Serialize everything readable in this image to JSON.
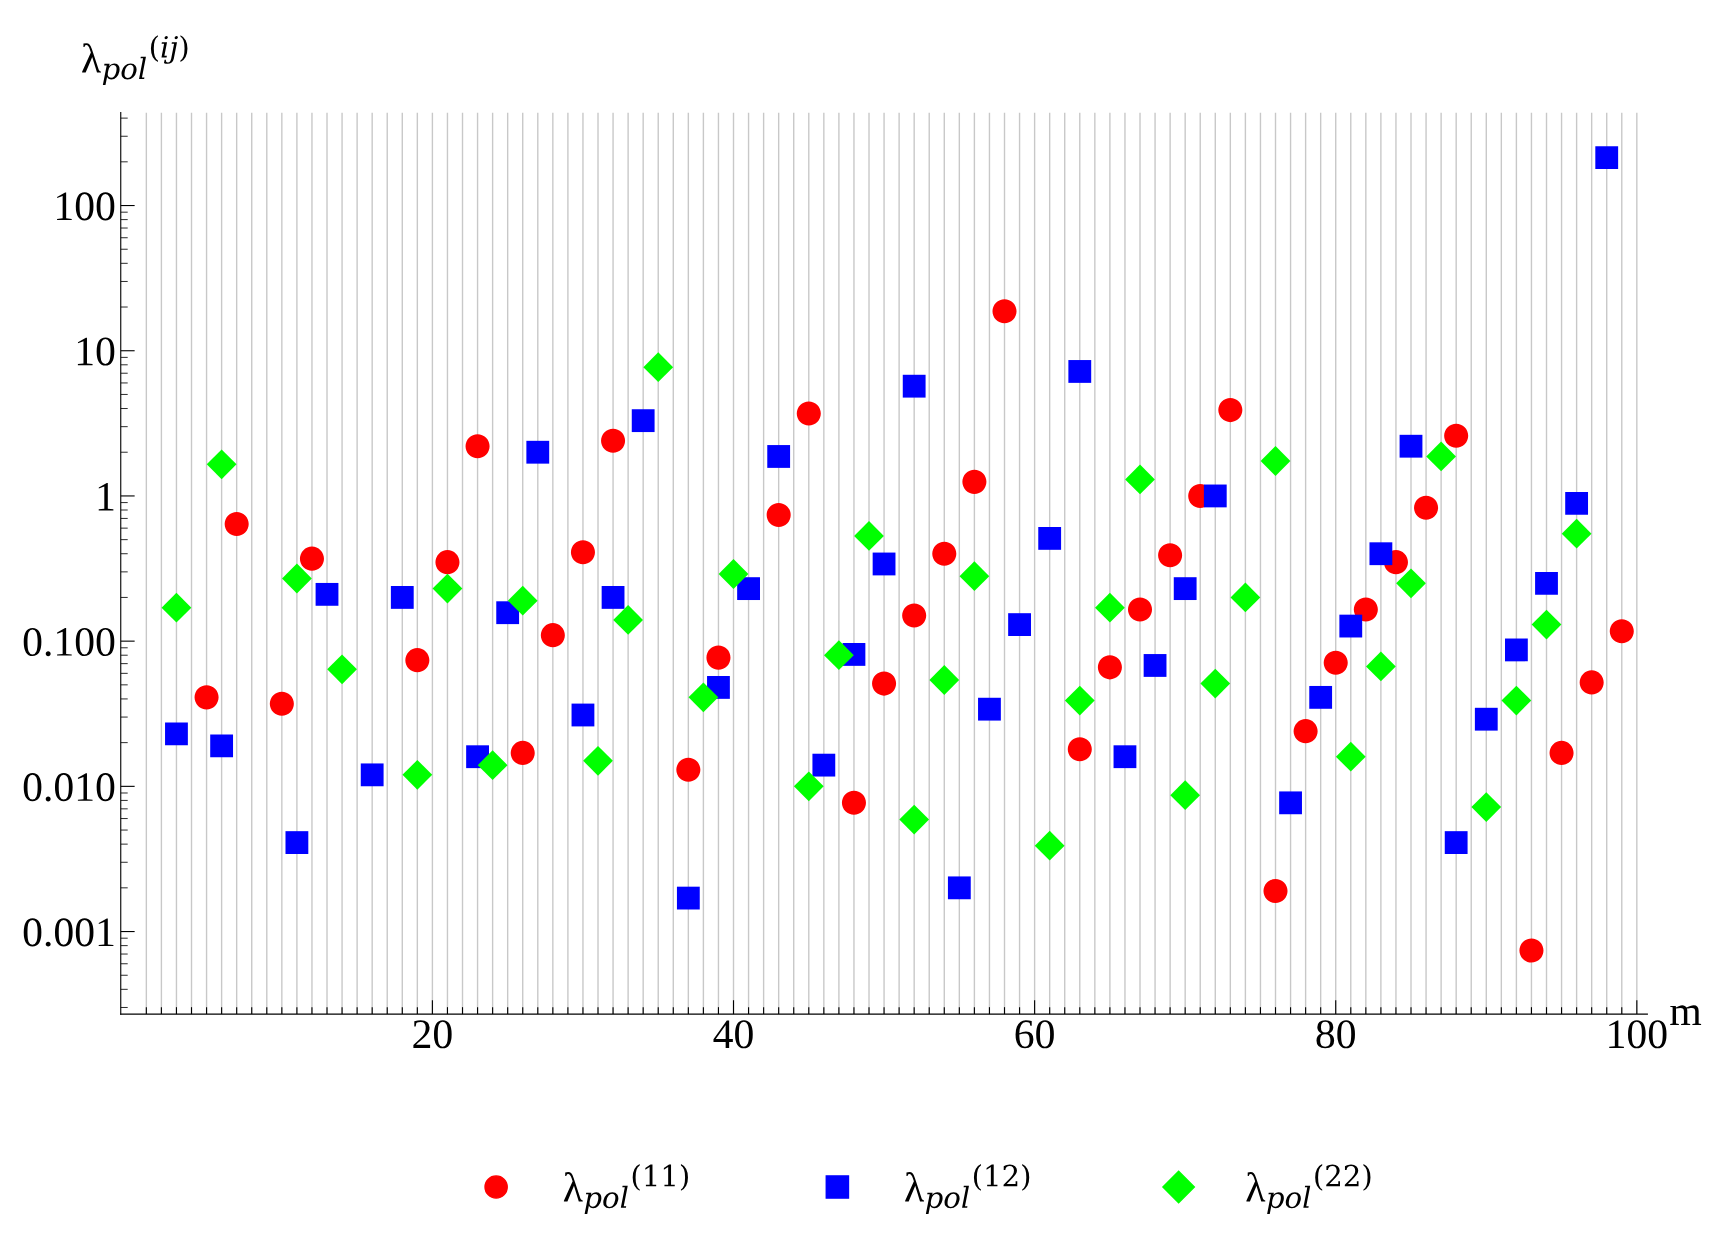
{
  "chart_data": {
    "type": "scatter",
    "xlabel": "m",
    "ylabel": "λ$_{pol}$$^{(ij)}$",
    "log": "y",
    "grid": "x",
    "legend": "bottom",
    "xlim": [
      -0.7,
      100.7
    ],
    "ylim": [
      0.00027,
      436
    ],
    "yticks": [
      {
        "value": 0.001,
        "label": "0.001"
      },
      {
        "value": 0.01,
        "label": "0.010"
      },
      {
        "value": 0.1,
        "label": "0.100"
      },
      1,
      10,
      100
    ],
    "xticks": [
      {
        "value": 1,
        "label": null
      },
      {
        "value": 2,
        "label": null
      },
      {
        "value": 3,
        "label": null
      },
      {
        "value": 4,
        "label": null
      },
      {
        "value": 5,
        "label": null
      },
      {
        "value": 6,
        "label": null
      },
      {
        "value": 7,
        "label": null
      },
      {
        "value": 8,
        "label": null
      },
      {
        "value": 9,
        "label": null
      },
      {
        "value": 10,
        "label": null
      },
      {
        "value": 11,
        "label": null
      },
      {
        "value": 12,
        "label": null
      },
      {
        "value": 13,
        "label": null
      },
      {
        "value": 14,
        "label": null
      },
      {
        "value": 15,
        "label": null
      },
      {
        "value": 16,
        "label": null
      },
      {
        "value": 17,
        "label": null
      },
      {
        "value": 18,
        "label": null
      },
      {
        "value": 19,
        "label": null
      },
      20,
      {
        "value": 21,
        "label": null
      },
      {
        "value": 22,
        "label": null
      },
      {
        "value": 23,
        "label": null
      },
      {
        "value": 24,
        "label": null
      },
      {
        "value": 25,
        "label": null
      },
      {
        "value": 26,
        "label": null
      },
      {
        "value": 27,
        "label": null
      },
      {
        "value": 28,
        "label": null
      },
      {
        "value": 29,
        "label": null
      },
      {
        "value": 30,
        "label": null
      },
      {
        "value": 31,
        "label": null
      },
      {
        "value": 32,
        "label": null
      },
      {
        "value": 33,
        "label": null
      },
      {
        "value": 34,
        "label": null
      },
      {
        "value": 35,
        "label": null
      },
      {
        "value": 36,
        "label": null
      },
      {
        "value": 37,
        "label": null
      },
      {
        "value": 38,
        "label": null
      },
      {
        "value": 39,
        "label": null
      },
      40,
      {
        "value": 41,
        "label": null
      },
      {
        "value": 42,
        "label": null
      },
      {
        "value": 43,
        "label": null
      },
      {
        "value": 44,
        "label": null
      },
      {
        "value": 45,
        "label": null
      },
      {
        "value": 46,
        "label": null
      },
      {
        "value": 47,
        "label": null
      },
      {
        "value": 48,
        "label": null
      },
      {
        "value": 49,
        "label": null
      },
      {
        "value": 50,
        "label": null
      },
      {
        "value": 51,
        "label": null
      },
      {
        "value": 52,
        "label": null
      },
      {
        "value": 53,
        "label": null
      },
      {
        "value": 54,
        "label": null
      },
      {
        "value": 55,
        "label": null
      },
      {
        "value": 56,
        "label": null
      },
      {
        "value": 57,
        "label": null
      },
      {
        "value": 58,
        "label": null
      },
      {
        "value": 59,
        "label": null
      },
      60,
      {
        "value": 61,
        "label": null
      },
      {
        "value": 62,
        "label": null
      },
      {
        "value": 63,
        "label": null
      },
      {
        "value": 64,
        "label": null
      },
      {
        "value": 65,
        "label": null
      },
      {
        "value": 66,
        "label": null
      },
      {
        "value": 67,
        "label": null
      },
      {
        "value": 68,
        "label": null
      },
      {
        "value": 69,
        "label": null
      },
      {
        "value": 70,
        "label": null
      },
      {
        "value": 71,
        "label": null
      },
      {
        "value": 72,
        "label": null
      },
      {
        "value": 73,
        "label": null
      },
      {
        "value": 74,
        "label": null
      },
      {
        "value": 75,
        "label": null
      },
      {
        "value": 76,
        "label": null
      },
      {
        "value": 77,
        "label": null
      },
      {
        "value": 78,
        "label": null
      },
      {
        "value": 79,
        "label": null
      },
      80,
      {
        "value": 81,
        "label": null
      },
      {
        "value": 82,
        "label": null
      },
      {
        "value": 83,
        "label": null
      },
      {
        "value": 84,
        "label": null
      },
      {
        "value": 85,
        "label": null
      },
      {
        "value": 86,
        "label": null
      },
      {
        "value": 87,
        "label": null
      },
      {
        "value": 88,
        "label": null
      },
      {
        "value": 89,
        "label": null
      },
      {
        "value": 90,
        "label": null
      },
      {
        "value": 91,
        "label": null
      },
      {
        "value": 92,
        "label": null
      },
      {
        "value": 93,
        "label": null
      },
      {
        "value": 94,
        "label": null
      },
      {
        "value": 95,
        "label": null
      },
      {
        "value": 96,
        "label": null
      },
      {
        "value": 97,
        "label": null
      },
      {
        "value": 98,
        "label": null
      },
      {
        "value": 99,
        "label": null
      },
      100
    ],
    "series": [
      {
        "name": "λ$_{pol}$$^{(11)}$",
        "color": "#ff0000",
        "marker": "circle",
        "x": [
          5,
          7,
          10,
          12,
          19,
          21,
          23,
          26,
          28,
          30,
          32,
          37,
          39,
          43,
          45,
          48,
          50,
          52,
          54,
          56,
          58,
          63,
          65,
          67,
          69,
          71,
          73,
          76,
          78,
          80,
          82,
          84,
          86,
          88,
          93,
          95,
          97,
          99
        ],
        "values": [
          0.041,
          0.64,
          0.037,
          0.37,
          0.074,
          0.35,
          2.2,
          0.017,
          0.11,
          0.41,
          2.4,
          0.013,
          0.077,
          0.74,
          3.7,
          0.0077,
          0.051,
          0.15,
          0.4,
          1.25,
          18.7,
          0.018,
          0.066,
          0.165,
          0.39,
          1.0,
          3.9,
          0.0019,
          0.024,
          0.071,
          0.165,
          0.35,
          0.83,
          2.6,
          0.00074,
          0.017,
          0.052,
          0.117
        ]
      },
      {
        "name": "λ$_{pol}$$^{(12)}$",
        "color": "#0000ff",
        "marker": "square",
        "x": [
          3,
          6,
          11,
          13,
          16,
          18,
          23,
          25,
          27,
          30,
          32,
          34,
          37,
          39,
          41,
          43,
          46,
          48,
          50,
          52,
          55,
          57,
          59,
          61,
          63,
          66,
          68,
          70,
          72,
          77,
          79,
          81,
          83,
          85,
          88,
          90,
          92,
          94,
          96,
          98
        ],
        "values": [
          0.023,
          0.019,
          0.0041,
          0.21,
          0.012,
          0.2,
          0.016,
          0.157,
          2.0,
          0.031,
          0.2,
          3.3,
          0.0017,
          0.048,
          0.23,
          1.87,
          0.014,
          0.081,
          0.34,
          5.7,
          0.002,
          0.034,
          0.13,
          0.51,
          7.2,
          0.016,
          0.068,
          0.23,
          1.0,
          0.0077,
          0.041,
          0.127,
          0.4,
          2.2,
          0.0041,
          0.029,
          0.087,
          0.25,
          0.89,
          214
        ]
      },
      {
        "name": "λ$_{pol}$$^{(22)}$",
        "color": "#00ff00",
        "marker": "diamond",
        "x": [
          3,
          6,
          11,
          14,
          19,
          21,
          24,
          26,
          31,
          33,
          35,
          38,
          40,
          45,
          47,
          49,
          52,
          54,
          56,
          61,
          63,
          65,
          67,
          70,
          72,
          74,
          76,
          81,
          83,
          85,
          87,
          90,
          92,
          94,
          96
        ],
        "values": [
          0.17,
          1.65,
          0.27,
          0.064,
          0.012,
          0.23,
          0.014,
          0.19,
          0.015,
          0.14,
          7.7,
          0.041,
          0.29,
          0.01,
          0.08,
          0.53,
          0.0059,
          0.054,
          0.28,
          0.0039,
          0.039,
          0.17,
          1.3,
          0.0087,
          0.051,
          0.2,
          1.74,
          0.016,
          0.067,
          0.25,
          1.87,
          0.0072,
          0.039,
          0.13,
          0.55
        ]
      }
    ]
  }
}
